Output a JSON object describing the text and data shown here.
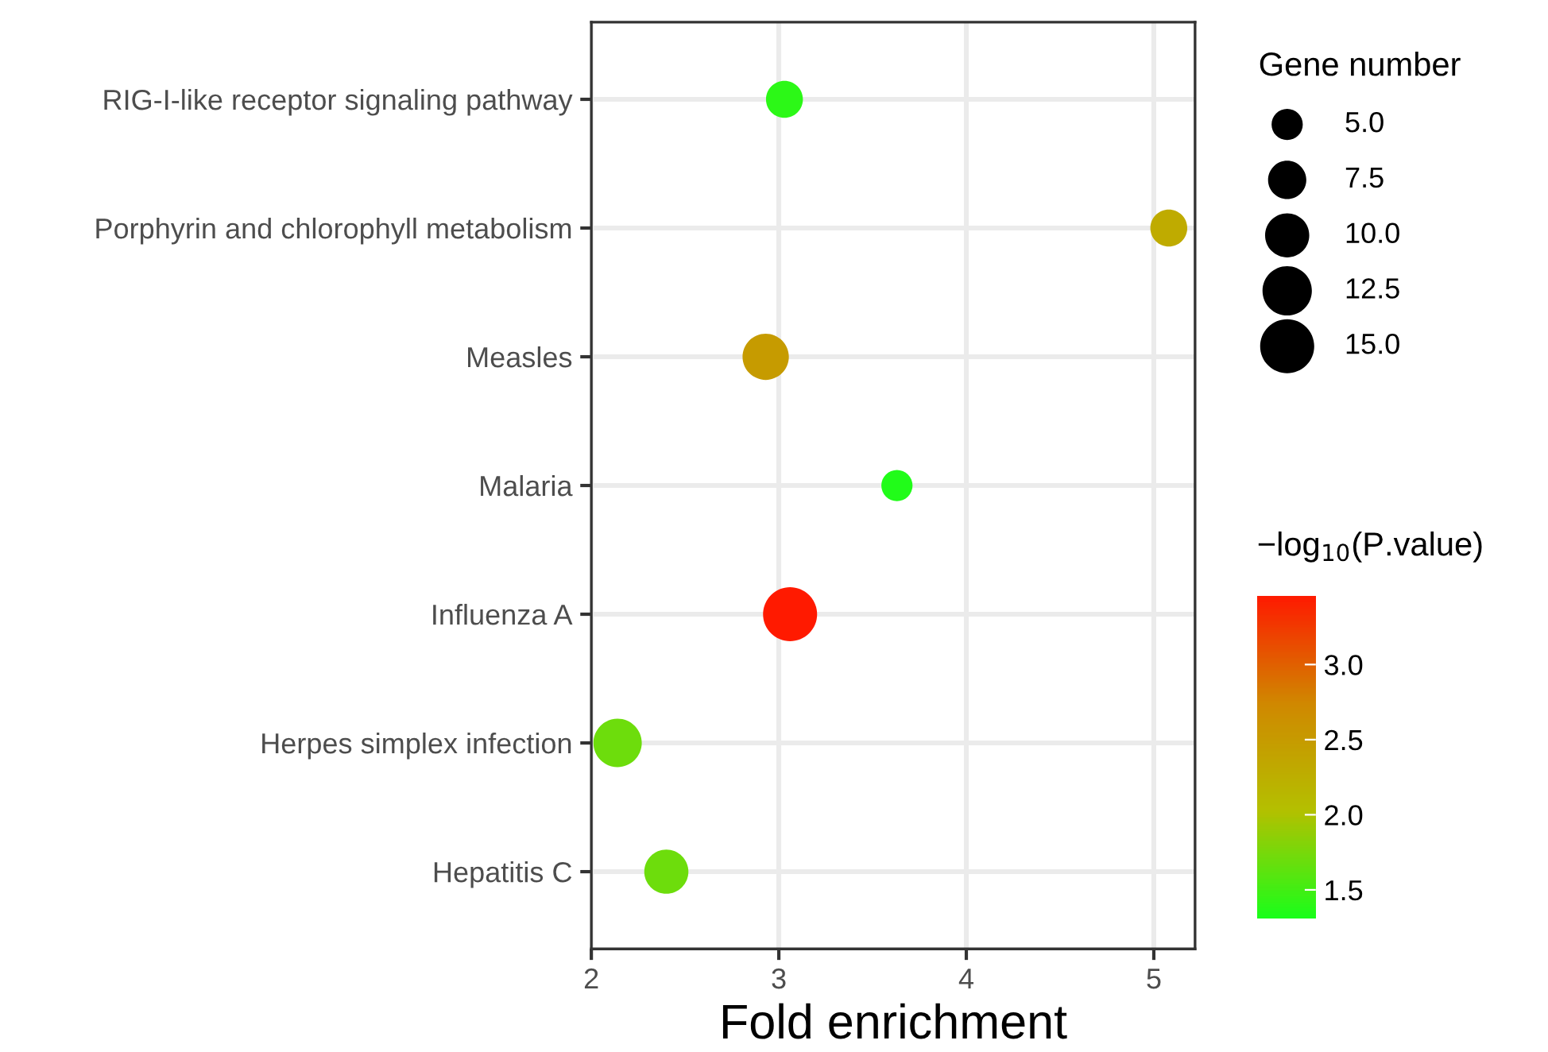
{
  "chart_data": {
    "type": "bubble",
    "xlabel": "Fold enrichment",
    "legend_title": "Gene number",
    "clabel": "−log$_{10}$(P.value)",
    "categories": [
      "RIG-I-like receptor signaling pathway",
      "Porphyrin and chlorophyll metabolism",
      "Measles",
      "Malaria",
      "Influenza A",
      "Herpes simplex infection",
      "Hepatitis C"
    ],
    "orientation": "horizontal",
    "values": [
      3.03,
      5.08,
      2.93,
      3.63,
      3.06,
      2.14,
      2.4
    ],
    "sizes": [
      7,
      7,
      11,
      5,
      15,
      12,
      10
    ],
    "cvalues": [
      1.4,
      2.3,
      2.5,
      1.35,
      3.46,
      1.7,
      1.7
    ],
    "size_legend": [
      {
        "value": 5,
        "label": "5.0"
      },
      {
        "value": 7.5,
        "label": "7.5"
      },
      {
        "value": 10,
        "label": "10.0"
      },
      {
        "value": 12.5,
        "label": "12.5"
      },
      {
        "value": 15,
        "label": "15.0"
      }
    ],
    "clim": [
      1.31,
      3.46
    ],
    "cticks": [
      {
        "value": 1.5,
        "label": "1.5"
      },
      {
        "value": 2,
        "label": "2.0"
      },
      {
        "value": 2.5,
        "label": "2.5"
      },
      {
        "value": 3,
        "label": "3.0"
      }
    ],
    "xlim": [
      2,
      5.22
    ],
    "xticks": [
      2,
      3,
      4,
      5
    ],
    "grid": true
  }
}
